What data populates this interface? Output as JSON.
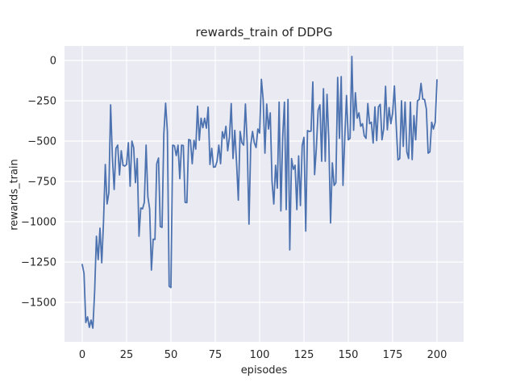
{
  "chart_data": {
    "type": "line",
    "title": "rewards_train of DDPG",
    "xlabel": "episodes",
    "ylabel": "rewards_train",
    "legend": "none",
    "grid": "on",
    "style": "seaborn-darkgrid",
    "colors": {
      "plot_background": "#eaeaf2",
      "gridline": "#ffffff",
      "line": "#4c72b0",
      "text": "#262626",
      "page_background": "#ffffff"
    },
    "axes": {
      "xlim": [
        -10,
        215
      ],
      "ylim": [
        -1745,
        90
      ],
      "xticks": [
        0,
        25,
        50,
        75,
        100,
        125,
        150,
        175,
        200
      ],
      "xtick_labels": [
        "0",
        "25",
        "50",
        "75",
        "100",
        "125",
        "150",
        "175",
        "200"
      ],
      "yticks": [
        0,
        -250,
        -500,
        -750,
        -1000,
        -1250,
        -1500
      ],
      "ytick_labels": [
        "0",
        "−250",
        "−500",
        "−750",
        "−1000",
        "−1250",
        "−1500"
      ]
    },
    "x_start": 0,
    "x_step": 1,
    "series": [
      {
        "name": "rewards_train",
        "values": [
          -1265,
          -1320,
          -1625,
          -1590,
          -1655,
          -1610,
          -1660,
          -1430,
          -1090,
          -1235,
          -1040,
          -1255,
          -1000,
          -645,
          -890,
          -820,
          -275,
          -600,
          -800,
          -545,
          -525,
          -710,
          -560,
          -650,
          -655,
          -645,
          -510,
          -780,
          -500,
          -540,
          -758,
          -608,
          -1090,
          -915,
          -920,
          -880,
          -525,
          -845,
          -920,
          -1300,
          -1108,
          -1110,
          -640,
          -605,
          -1030,
          -1035,
          -455,
          -265,
          -440,
          -1400,
          -1408,
          -525,
          -530,
          -590,
          -525,
          -733,
          -525,
          -528,
          -880,
          -882,
          -490,
          -495,
          -640,
          -495,
          -550,
          -283,
          -495,
          -358,
          -417,
          -358,
          -420,
          -290,
          -645,
          -545,
          -662,
          -660,
          -625,
          -525,
          -640,
          -442,
          -483,
          -408,
          -560,
          -475,
          -267,
          -608,
          -433,
          -633,
          -866,
          -440,
          -510,
          -525,
          -270,
          -515,
          -1015,
          -525,
          -440,
          -510,
          -540,
          -425,
          -450,
          -117,
          -242,
          -575,
          -270,
          -425,
          -325,
          -750,
          -890,
          -650,
          -792,
          -258,
          -933,
          -475,
          -258,
          -925,
          -242,
          -1175,
          -608,
          -675,
          -650,
          -925,
          -592,
          -900,
          -528,
          -477,
          -1058,
          -435,
          -440,
          -438,
          -133,
          -708,
          -542,
          -308,
          -275,
          -625,
          -175,
          -625,
          -210,
          -490,
          -1008,
          -635,
          -775,
          -758,
          -105,
          -483,
          -100,
          -775,
          -483,
          -217,
          -492,
          -483,
          25,
          -433,
          -200,
          -358,
          -325,
          -408,
          -392,
          -467,
          -483,
          -267,
          -392,
          -383,
          -512,
          -288,
          -497,
          -288,
          -272,
          -492,
          -420,
          -160,
          -430,
          -292,
          -392,
          -325,
          -158,
          -400,
          -617,
          -608,
          -250,
          -533,
          -258,
          -567,
          -608,
          -258,
          -615,
          -342,
          -492,
          -250,
          -242,
          -142,
          -240,
          -242,
          -300,
          -575,
          -567,
          -383,
          -425,
          -383,
          -120
        ]
      }
    ]
  }
}
